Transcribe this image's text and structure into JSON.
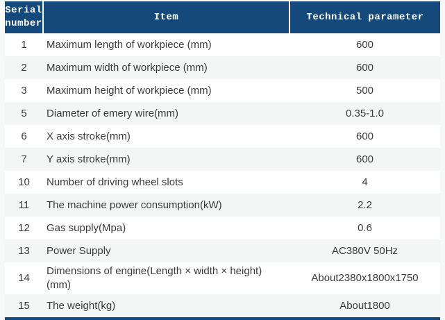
{
  "colors": {
    "page_bg": "#f7f8f8",
    "header_bg": "#15497b",
    "header_text": "#ffffff",
    "header_divider": "#ffffff",
    "row_bg": "#ffffff",
    "row_alt_bg": "#f4f5f5",
    "body_text": "#3b3b3d",
    "bottom_border": "#10477d"
  },
  "table": {
    "headers": {
      "serial": "Serial number",
      "item": "Item",
      "param": "Technical parameter"
    },
    "rows": [
      {
        "serial": "1",
        "item": "Maximum length of workpiece (mm)",
        "value": "600"
      },
      {
        "serial": "2",
        "item": "Maximum width of workpiece (mm)",
        "value": "600"
      },
      {
        "serial": "3",
        "item": "Maximum height of workpiece (mm)",
        "value": "500"
      },
      {
        "serial": "5",
        "item": "Diameter of emery wire(mm)",
        "value": "0.35-1.0"
      },
      {
        "serial": "6",
        "item": "X axis stroke(mm)",
        "value": "600"
      },
      {
        "serial": "7",
        "item": "Y axis stroke(mm)",
        "value": "600"
      },
      {
        "serial": "10",
        "item": "Number of driving wheel slots",
        "value": "4"
      },
      {
        "serial": "11",
        "item": "The machine power consumption(kW)",
        "value": "2.2"
      },
      {
        "serial": "12",
        "item": "Gas supply(Mpa)",
        "value": "0.6"
      },
      {
        "serial": "13",
        "item": "Power Supply",
        "value": "AC380V 50Hz"
      },
      {
        "serial": "14",
        "item": "Dimensions of engine(Length × width × height)(mm)",
        "value": "About2380x1800x1750"
      },
      {
        "serial": "15",
        "item": "The weight(kg)",
        "value": "About1800"
      }
    ]
  }
}
